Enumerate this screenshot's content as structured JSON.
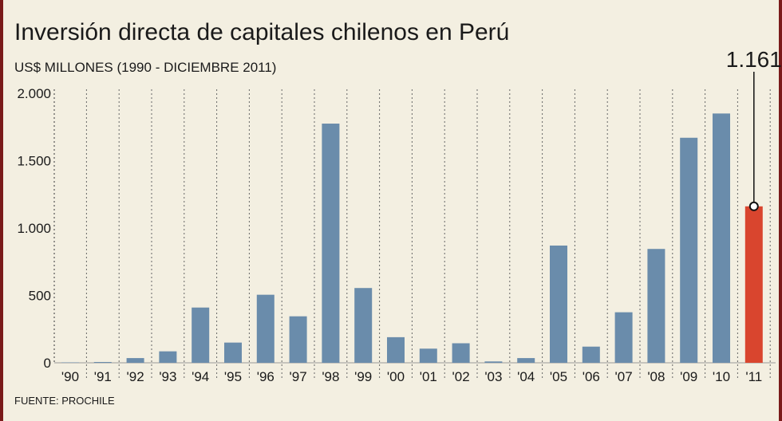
{
  "chart_data": {
    "type": "bar",
    "title": "Inversión directa de capitales chilenos en Perú",
    "subtitle": "US$ MILLONES (1990 - DICIEMBRE 2011)",
    "source": "FUENTE: PROCHILE",
    "categories": [
      "'90",
      "'91",
      "'92",
      "'93",
      "'94",
      "'95",
      "'96",
      "'97",
      "'98",
      "'99",
      "'00",
      "'01",
      "'02",
      "'03",
      "'04",
      "'05",
      "'06",
      "'07",
      "'08",
      "'09",
      "'10",
      "'11"
    ],
    "values": [
      3,
      6,
      35,
      85,
      410,
      150,
      505,
      345,
      1775,
      555,
      190,
      105,
      145,
      10,
      35,
      870,
      120,
      375,
      845,
      1670,
      1850,
      1161
    ],
    "highlight_index": 21,
    "highlight_label": "1.161",
    "y_ticks": [
      {
        "value": 0,
        "label": "0"
      },
      {
        "value": 500,
        "label": "500"
      },
      {
        "value": 1000,
        "label": "1.000"
      },
      {
        "value": 1500,
        "label": "1.500"
      },
      {
        "value": 2000,
        "label": "2.000"
      }
    ],
    "ylim": [
      0,
      2000
    ],
    "grid": "vertical-dotted",
    "colors": {
      "bar": "#6a8cab",
      "highlight": "#d9452e",
      "background": "#f3efe1",
      "border": "#7a1a1a"
    }
  }
}
